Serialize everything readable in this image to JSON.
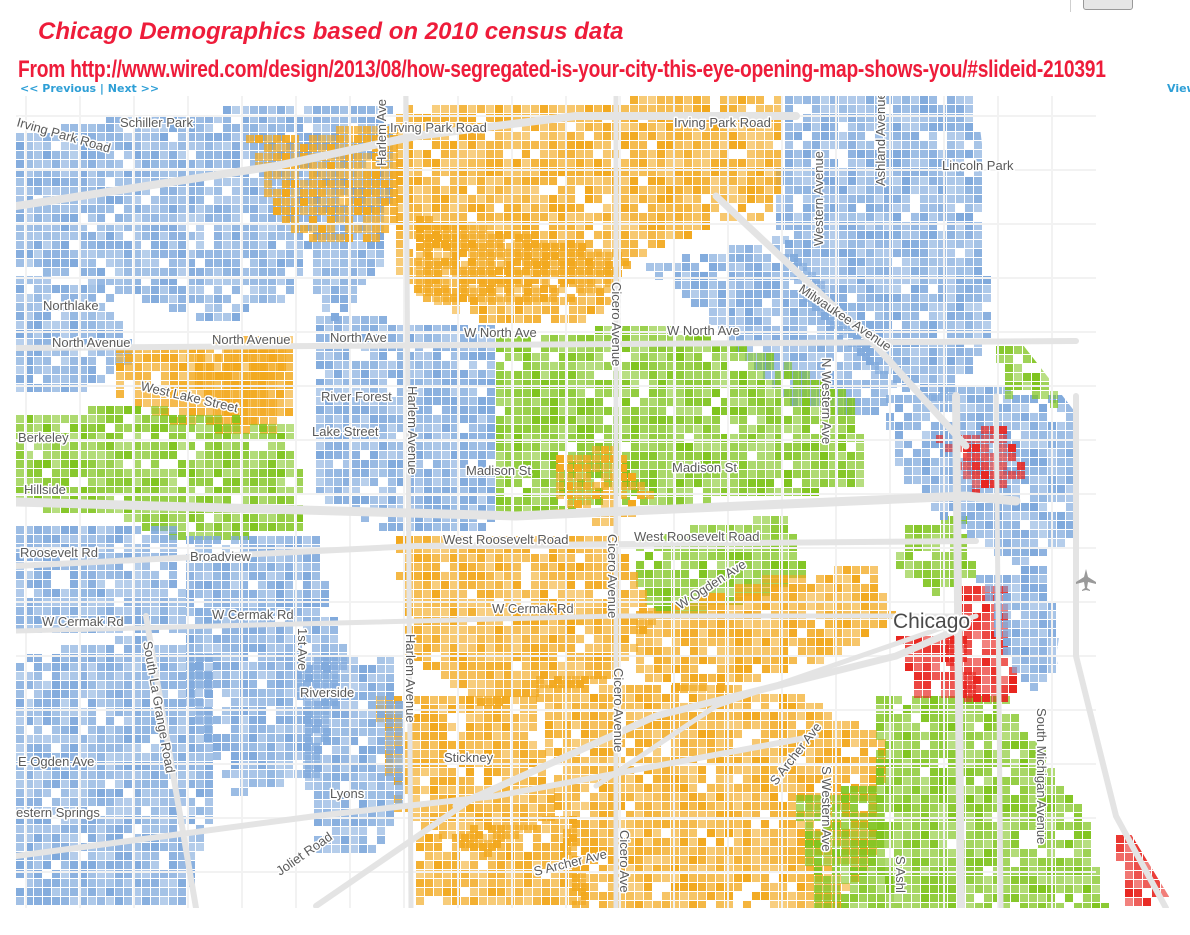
{
  "header": {
    "title": "Chicago Demographics based on 2010 census data",
    "source_line": "From http://www.wired.com/design/2013/08/how-segregated-is-your-city-this-eye-opening-map-shows-you/#slideid-210391",
    "nav_prev": "<< Previous",
    "nav_sep": " | ",
    "nav_next": "Next >>",
    "view": "View"
  },
  "colors": {
    "white": "#7fa9dc",
    "black": "#7fc41e",
    "hispanic": "#f2a81d",
    "asian": "#e8231d",
    "road": "#e4e4e4",
    "block_line": "#f2f2f2"
  },
  "map": {
    "labels": {
      "irving_park_w": "Irving Park Road",
      "schiller_park": "Schiller Park",
      "irving_park_mid": "Irving Park Road",
      "irving_park_e": "Irving Park Road",
      "lincoln_park": "Lincoln Park",
      "harlem_top": "Harlem Ave",
      "western_top": "Western Avenue",
      "ashland_top": "Ashland Avenue",
      "northlake": "Northlake",
      "north_avenue_w": "North Avenue",
      "north_avenue_2": "North Avenue",
      "north_ave_3": "North Ave",
      "w_north_ave_1": "W North Ave",
      "w_north_ave_2": "W North Ave",
      "harlem_avenue_mid": "Harlem Avenue",
      "cicero_avenue_top": "Cicero Avenue",
      "milwaukee_avenue": "Milwaukee Avenue",
      "n_western_ave": "N Western Ave",
      "west_lake_street": "West Lake Street",
      "river_forest": "River Forest",
      "lake_street": "Lake Street",
      "berkeley": "Berkeley",
      "hillside": "Hillside",
      "madison_st_1": "Madison St",
      "madison_st_2": "Madison St",
      "roosevelt_rd": "Roosevelt Rd",
      "broadview": "Broadview",
      "west_roosevelt_1": "West Roosevelt Road",
      "west_roosevelt_2": "West Roosevelt Road",
      "cicero_avenue_mid": "Cicero Avenue",
      "w_ogden_ave": "W Ogden Ave",
      "w_cermak_rd_1": "W Cermak Rd",
      "w_cermak_rd_2": "W Cermak Rd",
      "w_cermak_rd_3": "W Cermak Rd",
      "first_ave": "1st Ave",
      "south_la_grange": "South La Grange Road",
      "harlem_avenue_low": "Harlem Avenue",
      "riverside": "Riverside",
      "cicero_avenue_low": "Cicero Avenue",
      "chicago": "Chicago",
      "e_ogden_ave": "E Ogden Ave",
      "stickney": "Stickney",
      "s_archer_ave_1": "S Archer Ave",
      "s_western_ave": "S Western Ave",
      "south_michigan": "South Michigan Avenue",
      "western_springs": "estern Springs",
      "lyons": "Lyons",
      "joliet_road": "Joliet Road",
      "s_archer_ave_2": "S Archer Ave",
      "cicero_ave_bottom": "Cicero Ave",
      "s_ashland": "S Ashl"
    },
    "icons": [
      "airport-icon"
    ]
  }
}
